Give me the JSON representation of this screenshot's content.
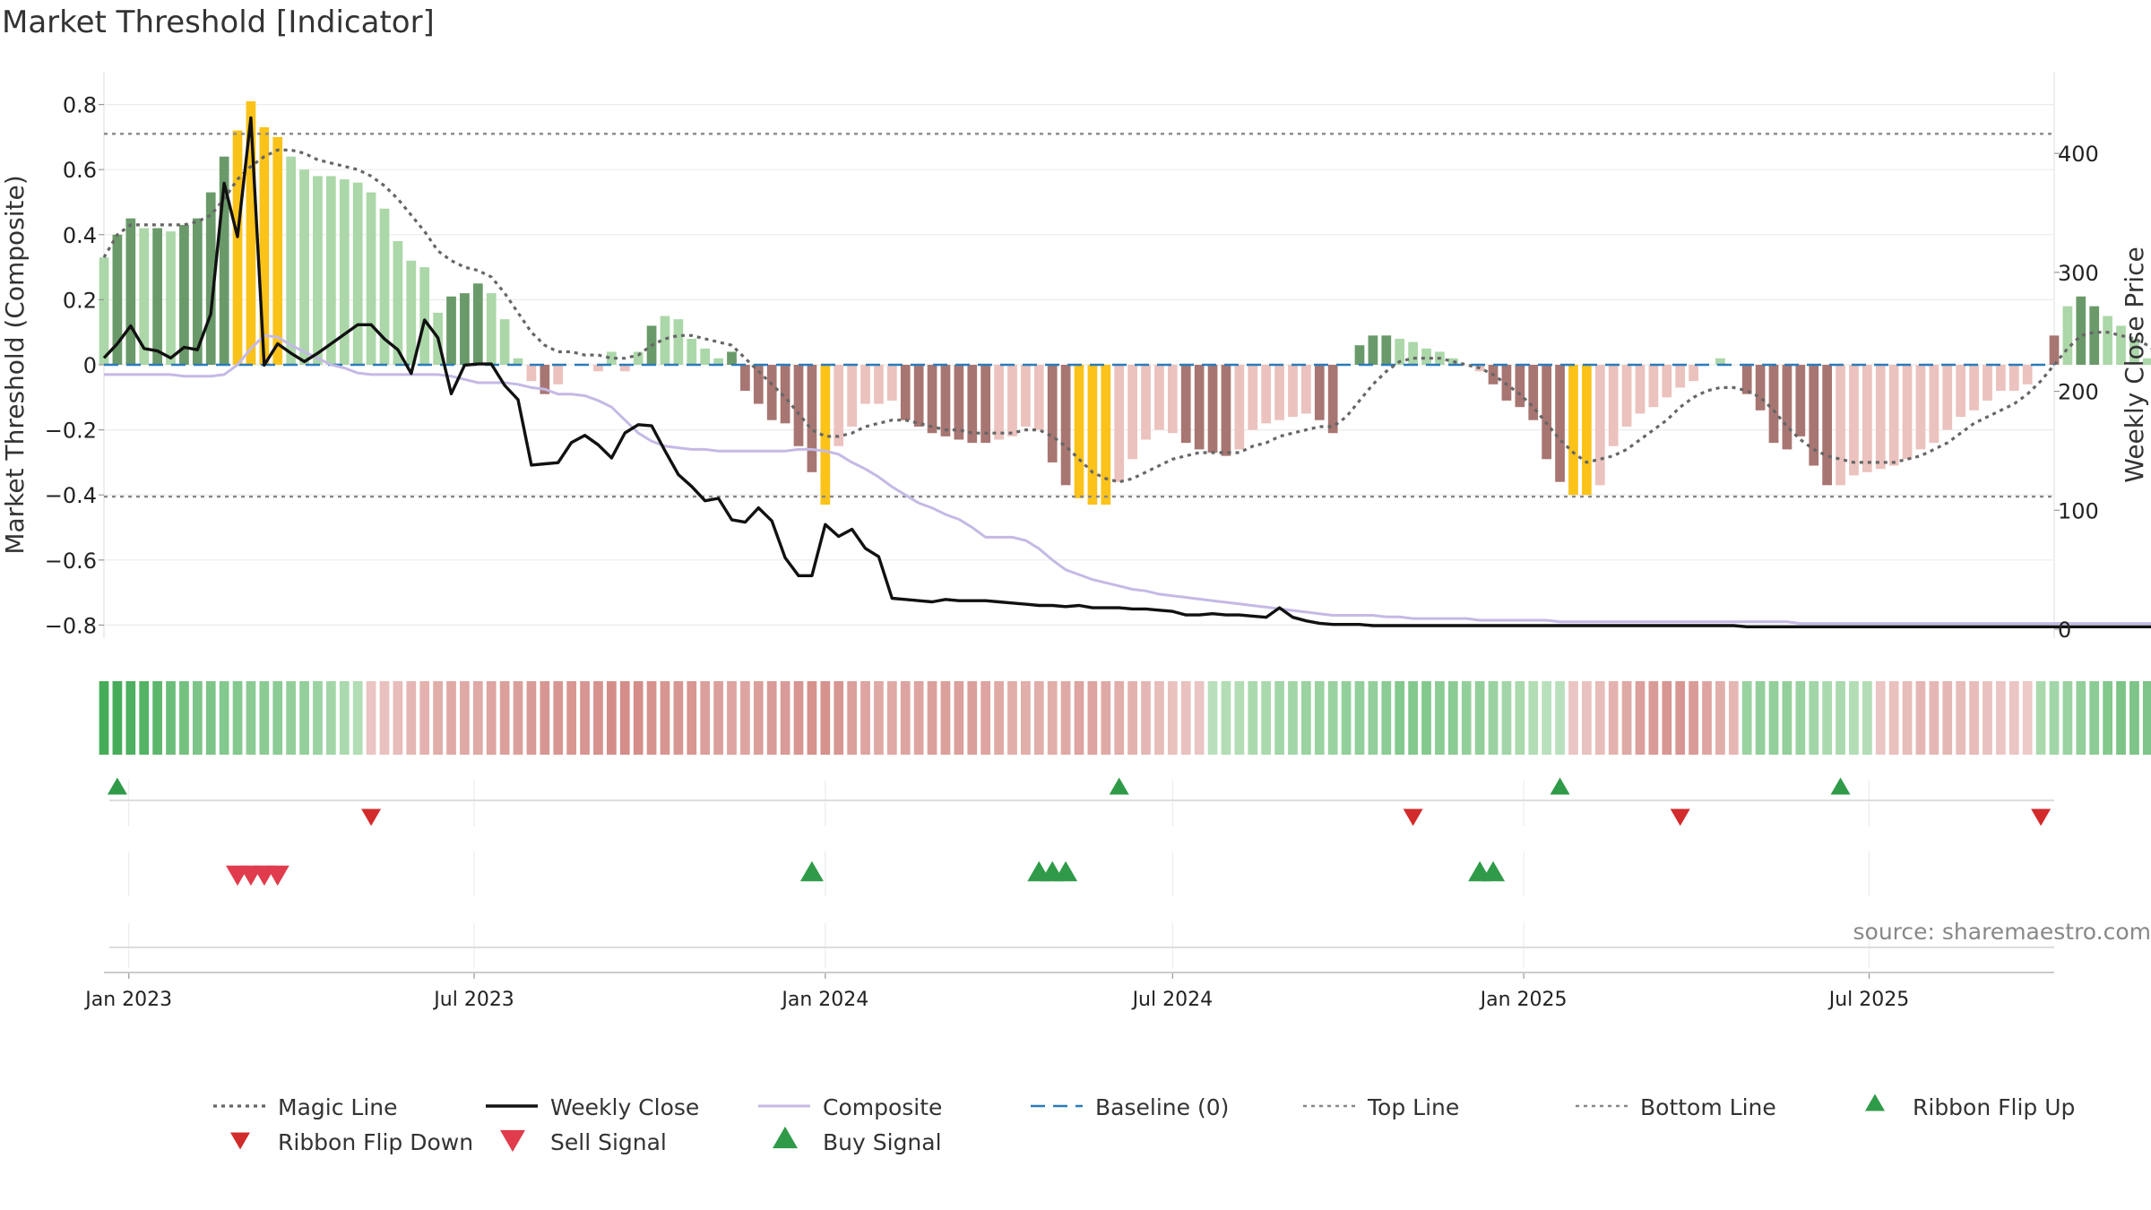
{
  "title": "Market Threshold [Indicator]",
  "source": "source: sharemaestro.com",
  "colors": {
    "bull_dark": "#6a9a6a",
    "bull_light": "#acd7a9",
    "bear_dark": "#a87672",
    "bear_light": "#ebc2be",
    "extreme": "#fbc319",
    "magic": "#666666",
    "close": "#111111",
    "composite": "#c5b9e5",
    "baseline": "#2b7bb9",
    "threshold": "#888888",
    "flip_up": "#2f9a48",
    "flip_down": "#d22b2b",
    "sell": "#e03c4d",
    "buy": "#2f9a48"
  },
  "chart_data": {
    "type": "bar",
    "xaxis": {
      "start": "2022-12-19",
      "end": "2025-10-06",
      "ticks": [
        {
          "date": "2023-01-01",
          "label": "Jan 2023"
        },
        {
          "date": "2023-07-01",
          "label": "Jul 2023"
        },
        {
          "date": "2024-01-01",
          "label": "Jan 2024"
        },
        {
          "date": "2024-07-01",
          "label": "Jul 2024"
        },
        {
          "date": "2025-01-01",
          "label": "Jan 2025"
        },
        {
          "date": "2025-07-01",
          "label": "Jul 2025"
        }
      ]
    },
    "yaxis_left": {
      "label": "Market Threshold (Composite)",
      "ylim": [
        -0.82,
        0.82
      ],
      "ticks": [
        0.8,
        0.6,
        0.4,
        0.2,
        0,
        -0.2,
        -0.4,
        -0.6,
        -0.8
      ],
      "tick_labels": [
        "0.8",
        "0.6",
        "0.4",
        "0.2",
        "0",
        "−0.2",
        "−0.4",
        "−0.6",
        "−0.8"
      ]
    },
    "yaxis_right": {
      "label": "Weekly Close Price",
      "ylim": [
        -2,
        445
      ],
      "ticks": [
        0,
        100,
        200,
        300,
        400
      ],
      "tick_labels": [
        "0",
        "100",
        "200",
        "300",
        "400"
      ]
    },
    "top_line": 0.71,
    "bottom_line": -0.405,
    "values": [
      0.33,
      0.4,
      0.45,
      0.42,
      0.42,
      0.41,
      0.43,
      0.45,
      0.53,
      0.64,
      0.72,
      0.81,
      0.73,
      0.7,
      0.64,
      0.6,
      0.58,
      0.58,
      0.57,
      0.56,
      0.53,
      0.48,
      0.38,
      0.32,
      0.3,
      0.16,
      0.21,
      0.22,
      0.25,
      0.22,
      0.14,
      0.02,
      -0.05,
      -0.09,
      -0.06,
      0,
      0,
      -0.02,
      0.04,
      -0.02,
      0.04,
      0.12,
      0.15,
      0.14,
      0.08,
      0.05,
      0.02,
      0.04,
      -0.08,
      -0.12,
      -0.17,
      -0.18,
      -0.25,
      -0.33,
      -0.43,
      -0.25,
      -0.19,
      -0.12,
      -0.12,
      -0.11,
      -0.17,
      -0.19,
      -0.21,
      -0.22,
      -0.23,
      -0.24,
      -0.24,
      -0.23,
      -0.22,
      -0.19,
      -0.2,
      -0.3,
      -0.37,
      -0.41,
      -0.43,
      -0.43,
      -0.36,
      -0.29,
      -0.23,
      -0.2,
      -0.21,
      -0.24,
      -0.26,
      -0.27,
      -0.28,
      -0.26,
      -0.2,
      -0.18,
      -0.17,
      -0.16,
      -0.15,
      -0.17,
      -0.21,
      0,
      0.06,
      0.09,
      0.09,
      0.08,
      0.07,
      0.05,
      0.04,
      0.02,
      0,
      -0.02,
      -0.06,
      -0.11,
      -0.13,
      -0.17,
      -0.29,
      -0.36,
      -0.4,
      -0.4,
      -0.37,
      -0.25,
      -0.19,
      -0.15,
      -0.13,
      -0.1,
      -0.07,
      -0.05,
      0,
      0.02,
      0,
      -0.09,
      -0.14,
      -0.24,
      -0.26,
      -0.22,
      -0.31,
      -0.37,
      -0.37,
      -0.34,
      -0.33,
      -0.32,
      -0.31,
      -0.29,
      -0.26,
      -0.24,
      -0.2,
      -0.16,
      -0.14,
      -0.11,
      -0.08,
      -0.08,
      -0.06,
      0,
      0.09,
      0.18,
      0.21,
      0.18,
      0.15,
      0.12,
      0.08,
      0.02,
      -0.04,
      -0.08
    ],
    "bar_kinds": [
      1,
      0,
      0,
      1,
      0,
      1,
      0,
      0,
      0,
      0,
      2,
      2,
      2,
      2,
      1,
      1,
      1,
      1,
      1,
      1,
      1,
      1,
      1,
      1,
      1,
      1,
      0,
      0,
      0,
      1,
      1,
      1,
      4,
      3,
      4,
      1,
      1,
      4,
      1,
      4,
      1,
      0,
      1,
      1,
      1,
      1,
      1,
      0,
      3,
      3,
      3,
      3,
      3,
      3,
      2,
      4,
      4,
      4,
      4,
      4,
      3,
      3,
      3,
      3,
      3,
      3,
      3,
      4,
      4,
      4,
      4,
      3,
      3,
      2,
      2,
      2,
      4,
      4,
      4,
      4,
      4,
      3,
      3,
      3,
      3,
      4,
      4,
      4,
      4,
      4,
      4,
      3,
      3,
      1,
      0,
      0,
      0,
      1,
      1,
      1,
      1,
      1,
      1,
      4,
      3,
      3,
      3,
      3,
      3,
      3,
      2,
      2,
      4,
      4,
      4,
      4,
      4,
      4,
      4,
      4,
      1,
      1,
      4,
      3,
      3,
      3,
      3,
      3,
      3,
      3,
      4,
      4,
      4,
      4,
      4,
      4,
      4,
      4,
      4,
      4,
      4,
      4,
      4,
      4,
      4,
      4,
      3,
      1,
      0,
      0,
      1,
      1,
      1,
      1,
      1,
      3,
      3
    ],
    "magic_line": [
      0.33,
      0.4,
      0.43,
      0.43,
      0.43,
      0.43,
      0.43,
      0.44,
      0.46,
      0.51,
      0.57,
      0.61,
      0.64,
      0.66,
      0.66,
      0.65,
      0.63,
      0.62,
      0.61,
      0.6,
      0.58,
      0.55,
      0.51,
      0.46,
      0.41,
      0.35,
      0.32,
      0.3,
      0.29,
      0.27,
      0.22,
      0.16,
      0.1,
      0.06,
      0.04,
      0.04,
      0.03,
      0.03,
      0.02,
      0.02,
      0.03,
      0.06,
      0.08,
      0.09,
      0.09,
      0.08,
      0.07,
      0.06,
      0.02,
      -0.02,
      -0.06,
      -0.1,
      -0.15,
      -0.2,
      -0.22,
      -0.22,
      -0.21,
      -0.19,
      -0.18,
      -0.17,
      -0.17,
      -0.18,
      -0.19,
      -0.2,
      -0.2,
      -0.21,
      -0.21,
      -0.21,
      -0.21,
      -0.2,
      -0.2,
      -0.22,
      -0.25,
      -0.29,
      -0.33,
      -0.35,
      -0.36,
      -0.35,
      -0.33,
      -0.31,
      -0.29,
      -0.28,
      -0.27,
      -0.27,
      -0.27,
      -0.27,
      -0.25,
      -0.24,
      -0.22,
      -0.21,
      -0.2,
      -0.19,
      -0.19,
      -0.16,
      -0.11,
      -0.06,
      -0.02,
      0.01,
      0.02,
      0.02,
      0.02,
      0.01,
      0,
      -0.01,
      -0.03,
      -0.06,
      -0.09,
      -0.13,
      -0.18,
      -0.23,
      -0.27,
      -0.3,
      -0.29,
      -0.28,
      -0.26,
      -0.23,
      -0.2,
      -0.17,
      -0.13,
      -0.1,
      -0.08,
      -0.07,
      -0.07,
      -0.08,
      -0.1,
      -0.14,
      -0.19,
      -0.23,
      -0.26,
      -0.28,
      -0.29,
      -0.3,
      -0.3,
      -0.3,
      -0.3,
      -0.29,
      -0.28,
      -0.26,
      -0.24,
      -0.21,
      -0.18,
      -0.16,
      -0.14,
      -0.12,
      -0.09,
      -0.05,
      0,
      0.05,
      0.09,
      0.1,
      0.1,
      0.09,
      0.08,
      0.06,
      0.03,
      0.02
    ],
    "composite": [
      -0.03,
      -0.03,
      -0.03,
      -0.03,
      -0.03,
      -0.03,
      -0.035,
      -0.035,
      -0.035,
      -0.03,
      0.0,
      0.05,
      0.09,
      0.085,
      0.06,
      0.04,
      0.02,
      0.0,
      -0.01,
      -0.025,
      -0.03,
      -0.03,
      -0.03,
      -0.03,
      -0.03,
      -0.03,
      -0.035,
      -0.045,
      -0.055,
      -0.055,
      -0.055,
      -0.06,
      -0.07,
      -0.075,
      -0.09,
      -0.09,
      -0.095,
      -0.11,
      -0.13,
      -0.17,
      -0.21,
      -0.235,
      -0.25,
      -0.255,
      -0.26,
      -0.26,
      -0.265,
      -0.265,
      -0.265,
      -0.265,
      -0.265,
      -0.265,
      -0.26,
      -0.26,
      -0.265,
      -0.275,
      -0.3,
      -0.32,
      -0.345,
      -0.375,
      -0.4,
      -0.425,
      -0.44,
      -0.46,
      -0.475,
      -0.5,
      -0.53,
      -0.53,
      -0.53,
      -0.54,
      -0.565,
      -0.6,
      -0.63,
      -0.645,
      -0.66,
      -0.67,
      -0.68,
      -0.69,
      -0.695,
      -0.705,
      -0.71,
      -0.715,
      -0.72,
      -0.725,
      -0.73,
      -0.735,
      -0.74,
      -0.745,
      -0.75,
      -0.755,
      -0.76,
      -0.765,
      -0.77,
      -0.77,
      -0.77,
      -0.77,
      -0.775,
      -0.775,
      -0.78,
      -0.78,
      -0.78,
      -0.78,
      -0.78,
      -0.785,
      -0.785,
      -0.785,
      -0.785,
      -0.785,
      -0.785,
      -0.79,
      -0.79,
      -0.79,
      -0.79,
      -0.79,
      -0.79,
      -0.79,
      -0.79,
      -0.79,
      -0.79,
      -0.79,
      -0.79,
      -0.79,
      -0.79,
      -0.79,
      -0.79,
      -0.79,
      -0.79,
      -0.795,
      -0.795,
      -0.795,
      -0.795,
      -0.795,
      -0.795,
      -0.795,
      -0.795,
      -0.795,
      -0.795,
      -0.795,
      -0.795,
      -0.795,
      -0.795,
      -0.795,
      -0.795,
      -0.795,
      -0.795,
      -0.795,
      -0.795,
      -0.795,
      -0.795,
      -0.795,
      -0.795,
      -0.795,
      -0.795,
      -0.795,
      -0.795,
      -0.795,
      -0.795
    ],
    "weekly_close": [
      228,
      240,
      255,
      236,
      234,
      228,
      237,
      235,
      265,
      375,
      330,
      430,
      222,
      240,
      232,
      225,
      232,
      240,
      248,
      256,
      256,
      244,
      235,
      215,
      260,
      245,
      198,
      222,
      223,
      223,
      205,
      193,
      138,
      139,
      140,
      157,
      163,
      155,
      144,
      165,
      172,
      171,
      150,
      130,
      120,
      108,
      110,
      92,
      90,
      102,
      91,
      60,
      45,
      45,
      88,
      78,
      84,
      68,
      61,
      26,
      25,
      24,
      23,
      25,
      24,
      24,
      24,
      23,
      22,
      21,
      20,
      20,
      19,
      20,
      18,
      18,
      18,
      17,
      17,
      16,
      15,
      12,
      12,
      13,
      12,
      12,
      11,
      10,
      18,
      10,
      7,
      5,
      4,
      4,
      4,
      3,
      3,
      3,
      3,
      3,
      3,
      3,
      3,
      3,
      3,
      3,
      3,
      3,
      3,
      3,
      3,
      3,
      3,
      3,
      3,
      3,
      3,
      3,
      3,
      3,
      3,
      3,
      3,
      2,
      2,
      2,
      2,
      2,
      2,
      2,
      2,
      2,
      2,
      2,
      2,
      2,
      2,
      2,
      2,
      2,
      2,
      2,
      2,
      2,
      2,
      2,
      2,
      2,
      2,
      2,
      2,
      2,
      2,
      2,
      2,
      2,
      2,
      2,
      2,
      2
    ],
    "ribbon": [
      0.95,
      0.95,
      0.9,
      0.85,
      0.8,
      0.7,
      0.65,
      0.6,
      0.6,
      0.55,
      0.55,
      0.5,
      0.5,
      0.5,
      0.45,
      0.45,
      0.4,
      0.35,
      0.3,
      0.25,
      -0.2,
      -0.25,
      -0.3,
      -0.35,
      -0.4,
      -0.45,
      -0.5,
      -0.5,
      -0.5,
      -0.55,
      -0.6,
      -0.6,
      -0.65,
      -0.7,
      -0.7,
      -0.7,
      -0.7,
      -0.75,
      -0.8,
      -0.8,
      -0.8,
      -0.75,
      -0.7,
      -0.7,
      -0.7,
      -0.6,
      -0.6,
      -0.55,
      -0.55,
      -0.6,
      -0.65,
      -0.65,
      -0.7,
      -0.75,
      -0.75,
      -0.7,
      -0.6,
      -0.55,
      -0.5,
      -0.5,
      -0.55,
      -0.55,
      -0.6,
      -0.6,
      -0.6,
      -0.6,
      -0.55,
      -0.5,
      -0.45,
      -0.45,
      -0.45,
      -0.45,
      -0.5,
      -0.55,
      -0.55,
      -0.5,
      -0.45,
      -0.4,
      -0.35,
      -0.3,
      -0.25,
      -0.25,
      -0.2,
      0.2,
      0.25,
      0.25,
      0.3,
      0.3,
      0.35,
      0.35,
      0.4,
      0.4,
      0.4,
      0.45,
      0.45,
      0.45,
      0.5,
      0.55,
      0.55,
      0.55,
      0.5,
      0.5,
      0.45,
      0.45,
      0.4,
      0.35,
      0.3,
      0.25,
      0.2,
      0.2,
      -0.2,
      -0.25,
      -0.3,
      -0.4,
      -0.5,
      -0.6,
      -0.65,
      -0.7,
      -0.7,
      -0.65,
      -0.55,
      -0.45,
      -0.35,
      0.4,
      0.45,
      0.45,
      0.45,
      0.4,
      0.35,
      0.3,
      0.3,
      0.25,
      0.25,
      -0.2,
      -0.25,
      -0.3,
      -0.35,
      -0.35,
      -0.35,
      -0.3,
      -0.3,
      -0.25,
      -0.2,
      -0.2,
      -0.15,
      0.3,
      0.35,
      0.4,
      0.45,
      0.5,
      0.55,
      0.6,
      0.6,
      0.6,
      0.55,
      0.5,
      0.5,
      -0.2,
      -0.15
    ],
    "ribbon_flip_up_weeks": [
      1,
      76,
      109,
      130
    ],
    "ribbon_flip_down_weeks": [
      20,
      98,
      118,
      145
    ],
    "sell_signal_weeks": [
      10,
      11,
      12,
      13
    ],
    "buy_signal_weeks": [
      53,
      70,
      71,
      72,
      103,
      104
    ],
    "legend": [
      {
        "name": "Magic Line",
        "kind": "dotted"
      },
      {
        "name": "Weekly Close",
        "kind": "solid"
      },
      {
        "name": "Composite",
        "kind": "thin"
      },
      {
        "name": "Baseline (0)",
        "kind": "dashed"
      },
      {
        "name": "Top Line",
        "kind": "dotted-grey"
      },
      {
        "name": "Bottom Line",
        "kind": "dotted-grey"
      },
      {
        "name": "Ribbon Flip Up",
        "kind": "tri-up-green"
      },
      {
        "name": "Ribbon Flip Down",
        "kind": "tri-down-red"
      },
      {
        "name": "Sell Signal",
        "kind": "tri-down-sell"
      },
      {
        "name": "Buy Signal",
        "kind": "tri-up-buy"
      }
    ],
    "legend_placement": "bottom-center",
    "grid": true
  }
}
